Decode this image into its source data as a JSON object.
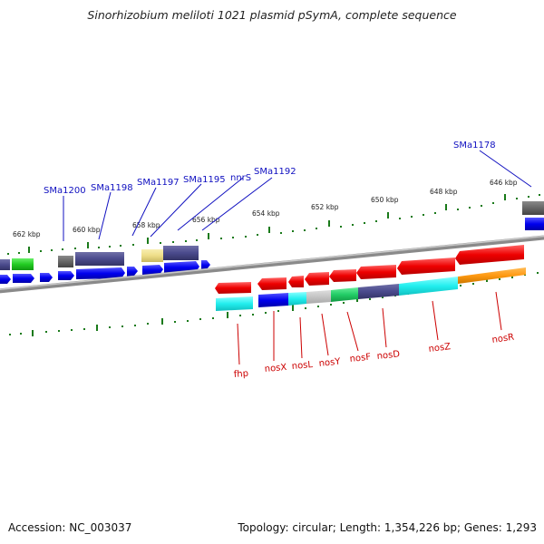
{
  "title": "Sinorhizobium meliloti 1021 plasmid pSymA, complete sequence",
  "footer": {
    "accession": "Accession: NC_003037",
    "summary": "Topology: circular; Length: 1,354,226 bp; Genes: 1,293"
  },
  "colors": {
    "ruler_green": "#1a7a1a",
    "backbone_gray": "#8a8a8a",
    "upper_label_blue": "#1010c0",
    "lower_label_red": "#cc0000"
  },
  "scale_labels": [
    "646 kbp",
    "648 kbp",
    "650 kbp",
    "652 kbp",
    "654 kbp",
    "656 kbp",
    "658 kbp",
    "660 kbp",
    "662 kbp"
  ],
  "upper_gene_labels": [
    "SMa1178",
    "SMa1192",
    "nnrS",
    "SMa1195",
    "SMa1197",
    "SMa1198",
    "SMa1200"
  ],
  "lower_gene_labels": [
    "fhp",
    "nosX",
    "nosL",
    "nosY",
    "nosF",
    "nosD",
    "nosZ",
    "nosR"
  ]
}
